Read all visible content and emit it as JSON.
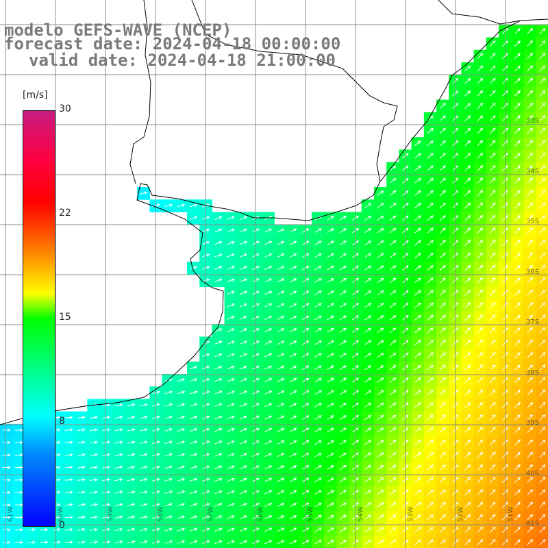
{
  "title": {
    "line1": "modelo GEFS-WAVE (NCEP)",
    "line2": "forecast date: 2024-04-18 00:00:00",
    "line3": "valid date: 2024-04-18 21:00:00"
  },
  "colorbar": {
    "unit": "[m/s]",
    "ticks": [
      "30",
      "22",
      "15",
      "8",
      "0"
    ],
    "min": 0,
    "max": 30,
    "colors": [
      "#0000ff",
      "#0090ff",
      "#00ffff",
      "#00ff00",
      "#ffff00",
      "#ff9000",
      "#ff0000",
      "#c81c80"
    ]
  },
  "map": {
    "lat_labels": [
      "33S",
      "34S",
      "35S",
      "36S",
      "37S",
      "38S",
      "39S",
      "40S",
      "41S"
    ],
    "lon_labels": [
      "61W",
      "60W",
      "59W",
      "58W",
      "57W",
      "56W",
      "55W",
      "54W",
      "53W",
      "52W",
      "51W"
    ],
    "land_color": "#ffffff",
    "grid_color": "#8c8c8c",
    "coast_color": "#000000",
    "vector_color": "#ffffff"
  }
}
